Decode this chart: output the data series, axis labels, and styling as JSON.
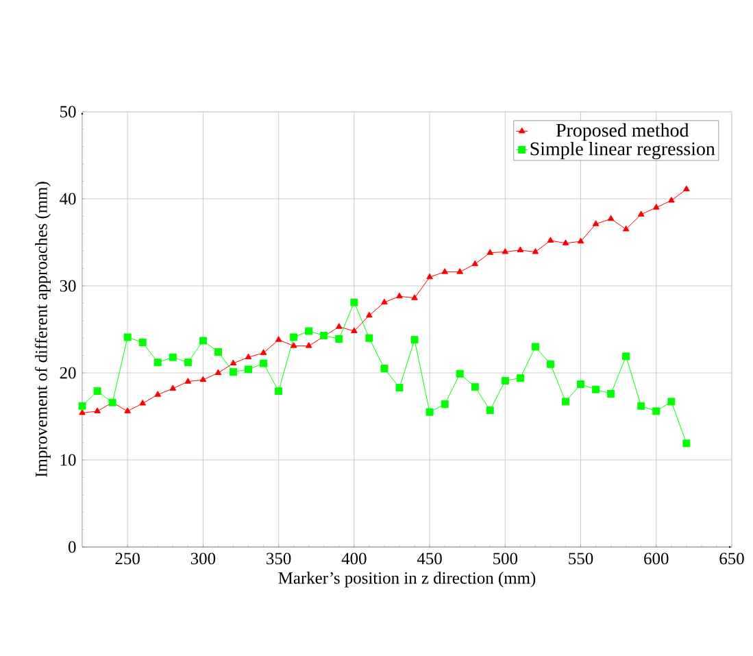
{
  "chart_data": {
    "type": "line",
    "xlabel": "Marker’s position in z direction (mm)",
    "ylabel": "Improvement of different approaches (mm)",
    "x": [
      220,
      230,
      240,
      250,
      260,
      270,
      280,
      290,
      300,
      310,
      320,
      330,
      340,
      350,
      360,
      370,
      380,
      390,
      400,
      410,
      420,
      430,
      440,
      450,
      460,
      470,
      480,
      490,
      500,
      510,
      520,
      530,
      540,
      550,
      560,
      570,
      580,
      590,
      600,
      610,
      620
    ],
    "series": [
      {
        "name": "Proposed method",
        "color": "#ff0000",
        "marker": "triangle",
        "values": [
          15.4,
          15.6,
          16.6,
          15.6,
          16.5,
          17.5,
          18.2,
          19.0,
          19.2,
          20.0,
          21.1,
          21.8,
          22.3,
          23.8,
          23.1,
          23.1,
          24.2,
          25.3,
          24.8,
          26.6,
          28.1,
          28.8,
          28.6,
          31.0,
          31.6,
          31.6,
          32.5,
          33.8,
          33.9,
          34.1,
          33.9,
          35.2,
          34.9,
          35.1,
          37.1,
          37.7,
          36.5,
          38.2,
          39.0,
          39.8,
          41.1
        ]
      },
      {
        "name": "Simple linear regression",
        "color": "#00ff00",
        "marker": "square",
        "values": [
          16.2,
          17.9,
          16.6,
          24.1,
          23.5,
          21.2,
          21.8,
          21.2,
          23.7,
          22.4,
          20.1,
          20.4,
          21.1,
          17.9,
          24.1,
          24.8,
          24.3,
          23.9,
          28.1,
          24.0,
          20.5,
          18.3,
          23.8,
          15.5,
          16.4,
          19.9,
          18.4,
          15.7,
          19.1,
          19.4,
          23.0,
          21.0,
          16.7,
          18.7,
          18.1,
          17.6,
          21.9,
          16.2,
          15.6,
          16.7,
          11.9
        ]
      }
    ],
    "xlim": [
      220,
      650
    ],
    "ylim": [
      0,
      50
    ],
    "xticks": [
      250,
      300,
      350,
      400,
      450,
      500,
      550,
      600,
      650
    ],
    "yticks": [
      0,
      10,
      20,
      30,
      40,
      50
    ],
    "grid": true,
    "legend": "top right",
    "line_style": "solid"
  }
}
